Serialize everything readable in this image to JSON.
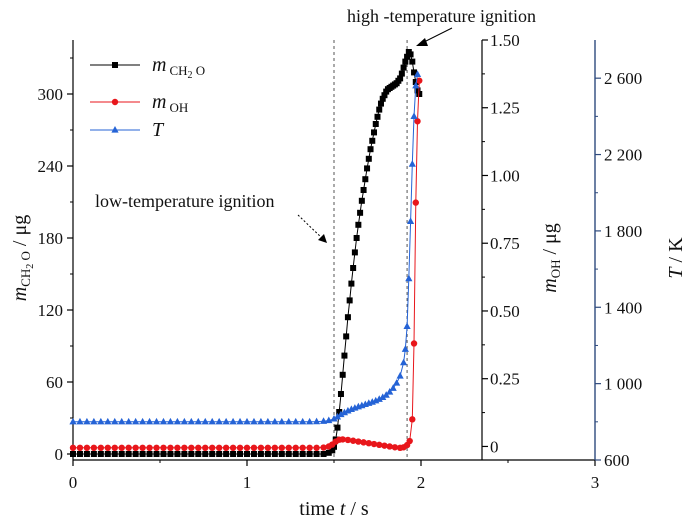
{
  "chart_data": {
    "type": "scatter",
    "x_axis": {
      "label": "time",
      "var": "t",
      "unit": "s",
      "range": [
        0,
        3
      ],
      "ticks": [
        0,
        1,
        2,
        3
      ]
    },
    "y_axes": [
      {
        "id": "y_ch2o",
        "label_main": "m",
        "label_sub": "CH",
        "label_sub2": "2",
        "label_sub3": "O",
        "unit": "μg",
        "range": [
          -5,
          345
        ],
        "ticks": [
          0,
          60,
          120,
          180,
          240,
          300
        ],
        "tick_labels": [
          "0",
          "60",
          "120",
          "180",
          "240",
          "300"
        ],
        "color": "#000000",
        "side": "left"
      },
      {
        "id": "y_oh",
        "label_main": "m",
        "label_sub": "OH",
        "unit": "μg",
        "range": [
          -0.05,
          1.5
        ],
        "ticks": [
          0,
          0.25,
          0.5,
          0.75,
          1.0,
          1.25,
          1.5
        ],
        "tick_labels": [
          "0",
          "0.25",
          "0.50",
          "0.75",
          "1.00",
          "1.25",
          "1.50"
        ],
        "color": "#000000",
        "side": "right"
      },
      {
        "id": "y_T",
        "label_main": "T",
        "unit": "K",
        "range": [
          600,
          2800
        ],
        "ticks": [
          600,
          1000,
          1400,
          1800,
          2200,
          2600
        ],
        "tick_labels": [
          "600",
          "1 000",
          "1 400",
          "1 800",
          "2 200",
          "2 600"
        ],
        "color": "#2e4a7d",
        "side": "right-outer"
      }
    ],
    "legend": {
      "placement": "top-left",
      "entries": [
        {
          "main": "m",
          "sub": "CH",
          "sub2": "2",
          "sub3": " O",
          "series": "ch2o"
        },
        {
          "main": "m",
          "sub": "OH",
          "series": "oh"
        },
        {
          "main": "T",
          "series": "T"
        }
      ]
    },
    "annotations": {
      "low": "low-temperature ignition",
      "high": "high -temperature ignition"
    },
    "vlines": [
      1.5,
      1.92
    ],
    "series": [
      {
        "id": "ch2o",
        "color": "#000000",
        "marker": "square",
        "axis": "y_ch2o",
        "points": [
          [
            0.0,
            0
          ],
          [
            0.04,
            0
          ],
          [
            0.08,
            0
          ],
          [
            0.12,
            0
          ],
          [
            0.16,
            0
          ],
          [
            0.2,
            0
          ],
          [
            0.24,
            0
          ],
          [
            0.28,
            0
          ],
          [
            0.32,
            0
          ],
          [
            0.36,
            0
          ],
          [
            0.4,
            0
          ],
          [
            0.44,
            0
          ],
          [
            0.48,
            0
          ],
          [
            0.52,
            0
          ],
          [
            0.56,
            0
          ],
          [
            0.6,
            0
          ],
          [
            0.64,
            0
          ],
          [
            0.68,
            0
          ],
          [
            0.72,
            0
          ],
          [
            0.76,
            0
          ],
          [
            0.8,
            0
          ],
          [
            0.84,
            0
          ],
          [
            0.88,
            0
          ],
          [
            0.92,
            0
          ],
          [
            0.96,
            0
          ],
          [
            1.0,
            0
          ],
          [
            1.04,
            0
          ],
          [
            1.08,
            0
          ],
          [
            1.12,
            0
          ],
          [
            1.16,
            0
          ],
          [
            1.2,
            0
          ],
          [
            1.24,
            0
          ],
          [
            1.28,
            0
          ],
          [
            1.32,
            0
          ],
          [
            1.36,
            0
          ],
          [
            1.4,
            0
          ],
          [
            1.44,
            0
          ],
          [
            1.47,
            1
          ],
          [
            1.49,
            3
          ],
          [
            1.5,
            6
          ],
          [
            1.51,
            12
          ],
          [
            1.52,
            22
          ],
          [
            1.53,
            35
          ],
          [
            1.54,
            50
          ],
          [
            1.55,
            66
          ],
          [
            1.56,
            82
          ],
          [
            1.57,
            98
          ],
          [
            1.58,
            114
          ],
          [
            1.59,
            128
          ],
          [
            1.6,
            142
          ],
          [
            1.61,
            155
          ],
          [
            1.62,
            168
          ],
          [
            1.63,
            180
          ],
          [
            1.64,
            191
          ],
          [
            1.65,
            201
          ],
          [
            1.66,
            211
          ],
          [
            1.67,
            220
          ],
          [
            1.68,
            229
          ],
          [
            1.69,
            238
          ],
          [
            1.7,
            246
          ],
          [
            1.71,
            254
          ],
          [
            1.72,
            261
          ],
          [
            1.73,
            268
          ],
          [
            1.74,
            275
          ],
          [
            1.75,
            281
          ],
          [
            1.76,
            287
          ],
          [
            1.77,
            292
          ],
          [
            1.78,
            296
          ],
          [
            1.79,
            299
          ],
          [
            1.8,
            302
          ],
          [
            1.81,
            304
          ],
          [
            1.82,
            305
          ],
          [
            1.83,
            306
          ],
          [
            1.84,
            307
          ],
          [
            1.85,
            308
          ],
          [
            1.86,
            309
          ],
          [
            1.87,
            311
          ],
          [
            1.88,
            313
          ],
          [
            1.89,
            317
          ],
          [
            1.9,
            322
          ],
          [
            1.91,
            327
          ],
          [
            1.92,
            331
          ],
          [
            1.93,
            335
          ],
          [
            1.94,
            333
          ],
          [
            1.95,
            327
          ],
          [
            1.96,
            318
          ],
          [
            1.97,
            310
          ],
          [
            1.98,
            303
          ],
          [
            1.99,
            300
          ]
        ]
      },
      {
        "id": "oh",
        "color": "#e8161b",
        "marker": "circle",
        "axis": "y_oh",
        "points": [
          [
            0.0,
            -0.005
          ],
          [
            0.04,
            -0.005
          ],
          [
            0.08,
            -0.005
          ],
          [
            0.12,
            -0.005
          ],
          [
            0.16,
            -0.005
          ],
          [
            0.2,
            -0.005
          ],
          [
            0.24,
            -0.005
          ],
          [
            0.28,
            -0.005
          ],
          [
            0.32,
            -0.005
          ],
          [
            0.36,
            -0.005
          ],
          [
            0.4,
            -0.005
          ],
          [
            0.44,
            -0.005
          ],
          [
            0.48,
            -0.005
          ],
          [
            0.52,
            -0.005
          ],
          [
            0.56,
            -0.005
          ],
          [
            0.6,
            -0.005
          ],
          [
            0.64,
            -0.005
          ],
          [
            0.68,
            -0.005
          ],
          [
            0.72,
            -0.005
          ],
          [
            0.76,
            -0.005
          ],
          [
            0.8,
            -0.005
          ],
          [
            0.84,
            -0.005
          ],
          [
            0.88,
            -0.005
          ],
          [
            0.92,
            -0.005
          ],
          [
            0.96,
            -0.005
          ],
          [
            1.0,
            -0.005
          ],
          [
            1.04,
            -0.005
          ],
          [
            1.08,
            -0.005
          ],
          [
            1.12,
            -0.005
          ],
          [
            1.16,
            -0.005
          ],
          [
            1.2,
            -0.005
          ],
          [
            1.24,
            -0.005
          ],
          [
            1.28,
            -0.005
          ],
          [
            1.32,
            -0.005
          ],
          [
            1.36,
            -0.005
          ],
          [
            1.4,
            -0.005
          ],
          [
            1.44,
            -0.004
          ],
          [
            1.47,
            0.0
          ],
          [
            1.49,
            0.007
          ],
          [
            1.51,
            0.018
          ],
          [
            1.53,
            0.025
          ],
          [
            1.55,
            0.026
          ],
          [
            1.58,
            0.024
          ],
          [
            1.61,
            0.021
          ],
          [
            1.64,
            0.018
          ],
          [
            1.67,
            0.015
          ],
          [
            1.7,
            0.012
          ],
          [
            1.73,
            0.009
          ],
          [
            1.76,
            0.006
          ],
          [
            1.79,
            0.003
          ],
          [
            1.82,
            0.0
          ],
          [
            1.85,
            -0.003
          ],
          [
            1.88,
            -0.005
          ],
          [
            1.9,
            -0.003
          ],
          [
            1.92,
            0.005
          ],
          [
            1.935,
            0.02
          ],
          [
            1.95,
            0.1
          ],
          [
            1.96,
            0.38
          ],
          [
            1.97,
            0.9
          ],
          [
            1.98,
            1.2
          ],
          [
            1.99,
            1.35
          ]
        ]
      },
      {
        "id": "T",
        "color": "#2563d6",
        "marker": "triangle",
        "axis": "y_T",
        "points": [
          [
            0.0,
            800
          ],
          [
            0.04,
            800
          ],
          [
            0.08,
            800
          ],
          [
            0.12,
            800
          ],
          [
            0.16,
            800
          ],
          [
            0.2,
            800
          ],
          [
            0.24,
            800
          ],
          [
            0.28,
            800
          ],
          [
            0.32,
            800
          ],
          [
            0.36,
            800
          ],
          [
            0.4,
            800
          ],
          [
            0.44,
            800
          ],
          [
            0.48,
            800
          ],
          [
            0.52,
            800
          ],
          [
            0.56,
            800
          ],
          [
            0.6,
            800
          ],
          [
            0.64,
            800
          ],
          [
            0.68,
            800
          ],
          [
            0.72,
            800
          ],
          [
            0.76,
            800
          ],
          [
            0.8,
            800
          ],
          [
            0.84,
            800
          ],
          [
            0.88,
            800
          ],
          [
            0.92,
            800
          ],
          [
            0.96,
            800
          ],
          [
            1.0,
            800
          ],
          [
            1.04,
            800
          ],
          [
            1.08,
            800
          ],
          [
            1.12,
            800
          ],
          [
            1.16,
            800
          ],
          [
            1.2,
            800
          ],
          [
            1.24,
            800
          ],
          [
            1.28,
            800
          ],
          [
            1.32,
            800
          ],
          [
            1.36,
            800
          ],
          [
            1.4,
            801
          ],
          [
            1.44,
            803
          ],
          [
            1.47,
            807
          ],
          [
            1.5,
            815
          ],
          [
            1.52,
            826
          ],
          [
            1.54,
            838
          ],
          [
            1.56,
            848
          ],
          [
            1.58,
            857
          ],
          [
            1.6,
            865
          ],
          [
            1.62,
            872
          ],
          [
            1.64,
            879
          ],
          [
            1.66,
            885
          ],
          [
            1.68,
            891
          ],
          [
            1.7,
            897
          ],
          [
            1.72,
            903
          ],
          [
            1.74,
            910
          ],
          [
            1.76,
            918
          ],
          [
            1.78,
            928
          ],
          [
            1.8,
            940
          ],
          [
            1.82,
            956
          ],
          [
            1.84,
            976
          ],
          [
            1.86,
            1003
          ],
          [
            1.88,
            1040
          ],
          [
            1.9,
            1110
          ],
          [
            1.91,
            1180
          ],
          [
            1.92,
            1300
          ],
          [
            1.93,
            1550
          ],
          [
            1.94,
            1850
          ],
          [
            1.95,
            2150
          ],
          [
            1.96,
            2400
          ],
          [
            1.97,
            2560
          ],
          [
            1.98,
            2620
          ]
        ]
      }
    ]
  }
}
